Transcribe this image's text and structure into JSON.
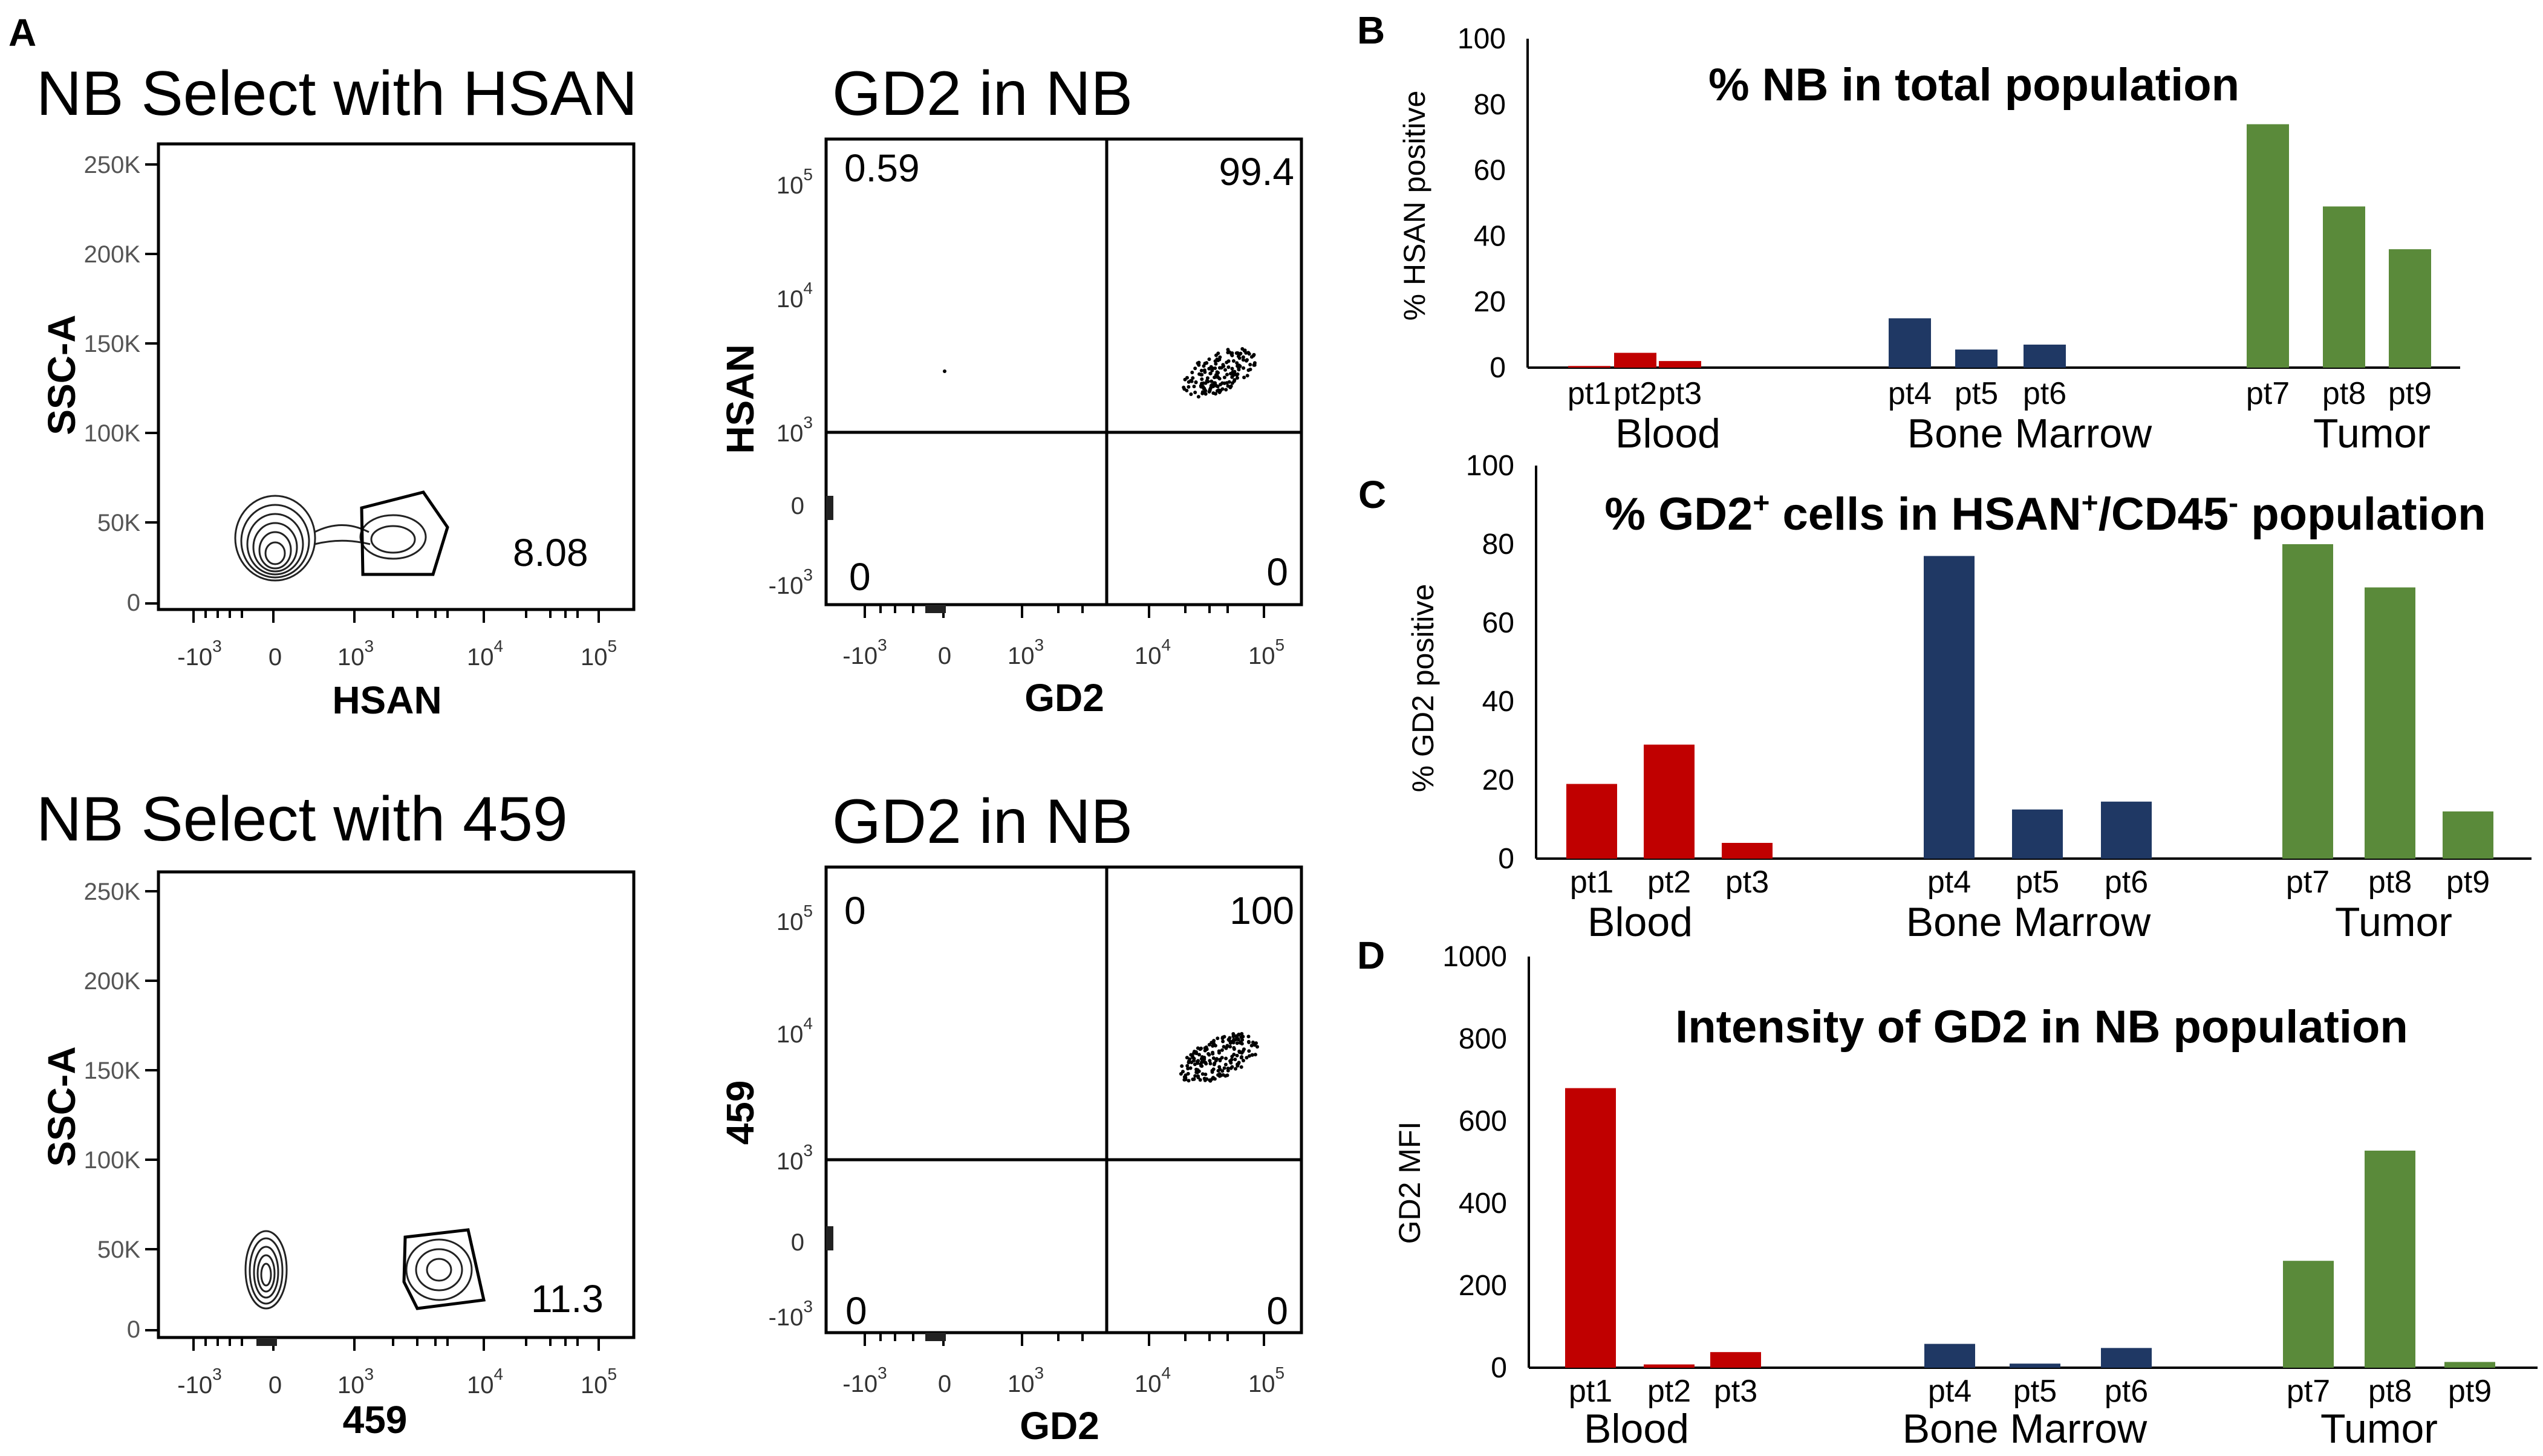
{
  "panel_letters": [
    "A",
    "B",
    "C",
    "D"
  ],
  "colors": {
    "blood": "#c00000",
    "bone_marrow": "#1f3864",
    "tumor": "#5a8a3a",
    "axis": "#000000",
    "text": "#000000"
  },
  "flow": {
    "ssc_ticks": [
      "250K",
      "200K",
      "150K",
      "100K",
      "50K",
      "0"
    ],
    "log_ticks": [
      {
        "base": "-10",
        "exp": "3"
      },
      {
        "base": "0",
        "exp": ""
      },
      {
        "base": "10",
        "exp": "3"
      },
      {
        "base": "10",
        "exp": "4"
      },
      {
        "base": "10",
        "exp": "5"
      }
    ],
    "contour1": {
      "title": "NB Select with HSAN",
      "ylabel": "SSC-A",
      "xlabel": "HSAN",
      "gate_value": "8.08"
    },
    "contour2": {
      "title": "NB Select with 459",
      "ylabel": "SSC-A",
      "xlabel": "459",
      "gate_value": "11.3"
    },
    "quad1": {
      "title": "GD2 in NB",
      "ylabel": "HSAN",
      "xlabel": "GD2",
      "q_ul": "0.59",
      "q_ur": "99.4",
      "q_ll": "0",
      "q_lr": "0"
    },
    "quad2": {
      "title": "GD2 in NB",
      "ylabel": "459",
      "xlabel": "GD2",
      "q_ul": "0",
      "q_ur": "100",
      "q_ll": "0",
      "q_lr": "0"
    }
  },
  "chart_data": [
    {
      "type": "bar",
      "panel": "B",
      "title": "% NB in total population",
      "ylabel": "% HSAN positive",
      "xlabel": "",
      "ylim": [
        0,
        100
      ],
      "yticks": [
        0,
        20,
        40,
        60,
        80,
        100
      ],
      "categories": [
        "pt1",
        "pt2",
        "pt3",
        "pt4",
        "pt5",
        "pt6",
        "pt7",
        "pt8",
        "pt9"
      ],
      "values": [
        0.5,
        4.5,
        2,
        15,
        5.5,
        7,
        74,
        49,
        36
      ],
      "groups": [
        {
          "name": "Blood",
          "indices": [
            0,
            1,
            2
          ],
          "color": "#c00000"
        },
        {
          "name": "Bone Marrow",
          "indices": [
            3,
            4,
            5
          ],
          "color": "#1f3864"
        },
        {
          "name": "Tumor",
          "indices": [
            6,
            7,
            8
          ],
          "color": "#5a8a3a"
        }
      ]
    },
    {
      "type": "bar",
      "panel": "C",
      "title": "% GD2+ cells in HSAN+/CD45- population",
      "title_parts": {
        "a": "% GD2",
        "sup1": "+",
        "b": " cells in HSAN",
        "sup2": "+",
        "c": "/CD45",
        "sup3": "-",
        "d": " population"
      },
      "ylabel": "% GD2 positive",
      "xlabel": "",
      "ylim": [
        0,
        100
      ],
      "yticks": [
        0,
        20,
        40,
        60,
        80,
        100
      ],
      "categories": [
        "pt1",
        "pt2",
        "pt3",
        "pt4",
        "pt5",
        "pt6",
        "pt7",
        "pt8",
        "pt9"
      ],
      "values": [
        19,
        29,
        4,
        77,
        12.5,
        14.5,
        80,
        69,
        12
      ],
      "groups": [
        {
          "name": "Blood",
          "indices": [
            0,
            1,
            2
          ],
          "color": "#c00000"
        },
        {
          "name": "Bone Marrow",
          "indices": [
            3,
            4,
            5
          ],
          "color": "#1f3864"
        },
        {
          "name": "Tumor",
          "indices": [
            6,
            7,
            8
          ],
          "color": "#5a8a3a"
        }
      ]
    },
    {
      "type": "bar",
      "panel": "D",
      "title": "Intensity of GD2 in NB population",
      "ylabel": "GD2 MFI",
      "xlabel": "",
      "ylim": [
        0,
        1000
      ],
      "yticks": [
        0,
        200,
        400,
        600,
        800,
        1000
      ],
      "categories": [
        "pt1",
        "pt2",
        "pt3",
        "pt4",
        "pt5",
        "pt6",
        "pt7",
        "pt8",
        "pt9"
      ],
      "values": [
        680,
        8,
        38,
        58,
        10,
        48,
        260,
        528,
        14
      ],
      "groups": [
        {
          "name": "Blood",
          "indices": [
            0,
            1,
            2
          ],
          "color": "#c00000"
        },
        {
          "name": "Bone Marrow",
          "indices": [
            3,
            4,
            5
          ],
          "color": "#1f3864"
        },
        {
          "name": "Tumor",
          "indices": [
            6,
            7,
            8
          ],
          "color": "#5a8a3a"
        }
      ]
    }
  ]
}
